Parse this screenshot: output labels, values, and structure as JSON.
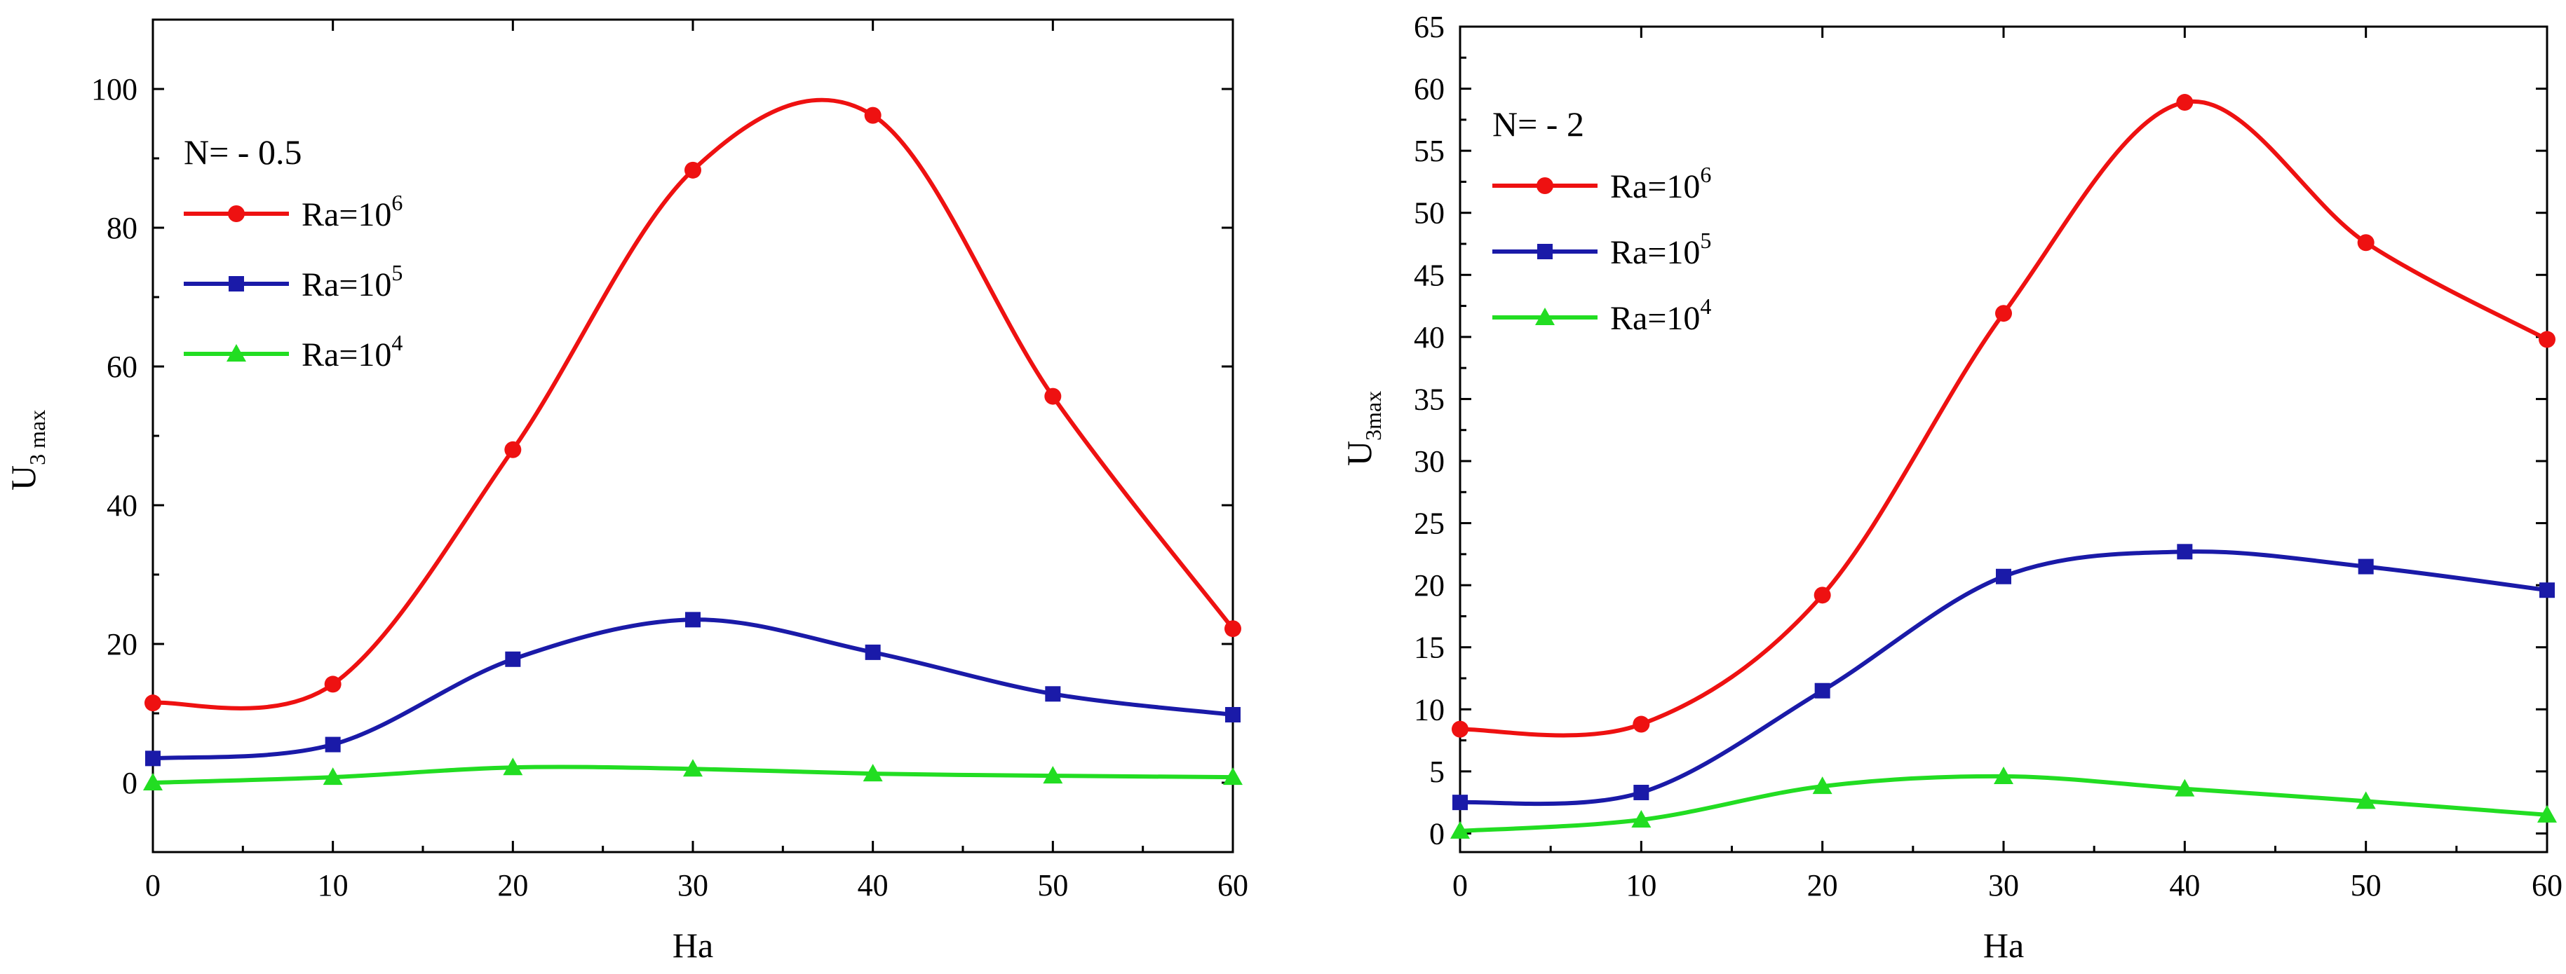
{
  "chart_data": [
    {
      "type": "line",
      "annotation": "N= - 0.5",
      "xlabel": "Ha",
      "ylabel": {
        "main": "U",
        "subscript": "3 max"
      },
      "xlim": [
        0,
        60
      ],
      "ylim": [
        -10,
        110
      ],
      "xticks": [
        0,
        10,
        20,
        30,
        40,
        50,
        60
      ],
      "yticks": [
        0,
        20,
        40,
        60,
        80,
        100
      ],
      "x": [
        0,
        10,
        20,
        30,
        40,
        50,
        60
      ],
      "series": [
        {
          "name": "Ra=10",
          "exp": "6",
          "color": "#ee1111",
          "marker": "circle",
          "values": [
            11.5,
            14.2,
            48,
            88.3,
            96.2,
            55.7,
            22.2
          ]
        },
        {
          "name": "Ra=10",
          "exp": "5",
          "color": "#1a1aa8",
          "marker": "square",
          "values": [
            3.5,
            5.5,
            17.8,
            23.5,
            18.8,
            12.8,
            9.8
          ]
        },
        {
          "name": "Ra=10",
          "exp": "4",
          "color": "#22dd22",
          "marker": "triangle",
          "values": [
            0,
            0.8,
            2.2,
            2.0,
            1.3,
            1.0,
            0.8
          ]
        }
      ]
    },
    {
      "type": "line",
      "annotation": "N= - 2",
      "xlabel": "Ha",
      "ylabel": {
        "main": "U",
        "subscript": "3max"
      },
      "xlim": [
        0,
        60
      ],
      "ylim": [
        -1.5,
        65
      ],
      "xticks": [
        0,
        10,
        20,
        30,
        40,
        50,
        60
      ],
      "yticks": [
        0,
        5,
        10,
        15,
        20,
        25,
        30,
        35,
        40,
        45,
        50,
        55,
        60,
        65
      ],
      "x": [
        0,
        10,
        20,
        30,
        40,
        50,
        60
      ],
      "series": [
        {
          "name": "Ra=10",
          "exp": "6",
          "color": "#ee1111",
          "marker": "circle",
          "values": [
            8.4,
            8.8,
            19.2,
            41.9,
            58.9,
            47.6,
            39.8
          ]
        },
        {
          "name": "Ra=10",
          "exp": "5",
          "color": "#1a1aa8",
          "marker": "square",
          "values": [
            2.5,
            3.3,
            11.5,
            20.7,
            22.7,
            21.5,
            19.6
          ]
        },
        {
          "name": "Ra=10",
          "exp": "4",
          "color": "#22dd22",
          "marker": "triangle",
          "values": [
            0.2,
            1.1,
            3.8,
            4.6,
            3.6,
            2.6,
            1.5
          ]
        }
      ]
    }
  ]
}
